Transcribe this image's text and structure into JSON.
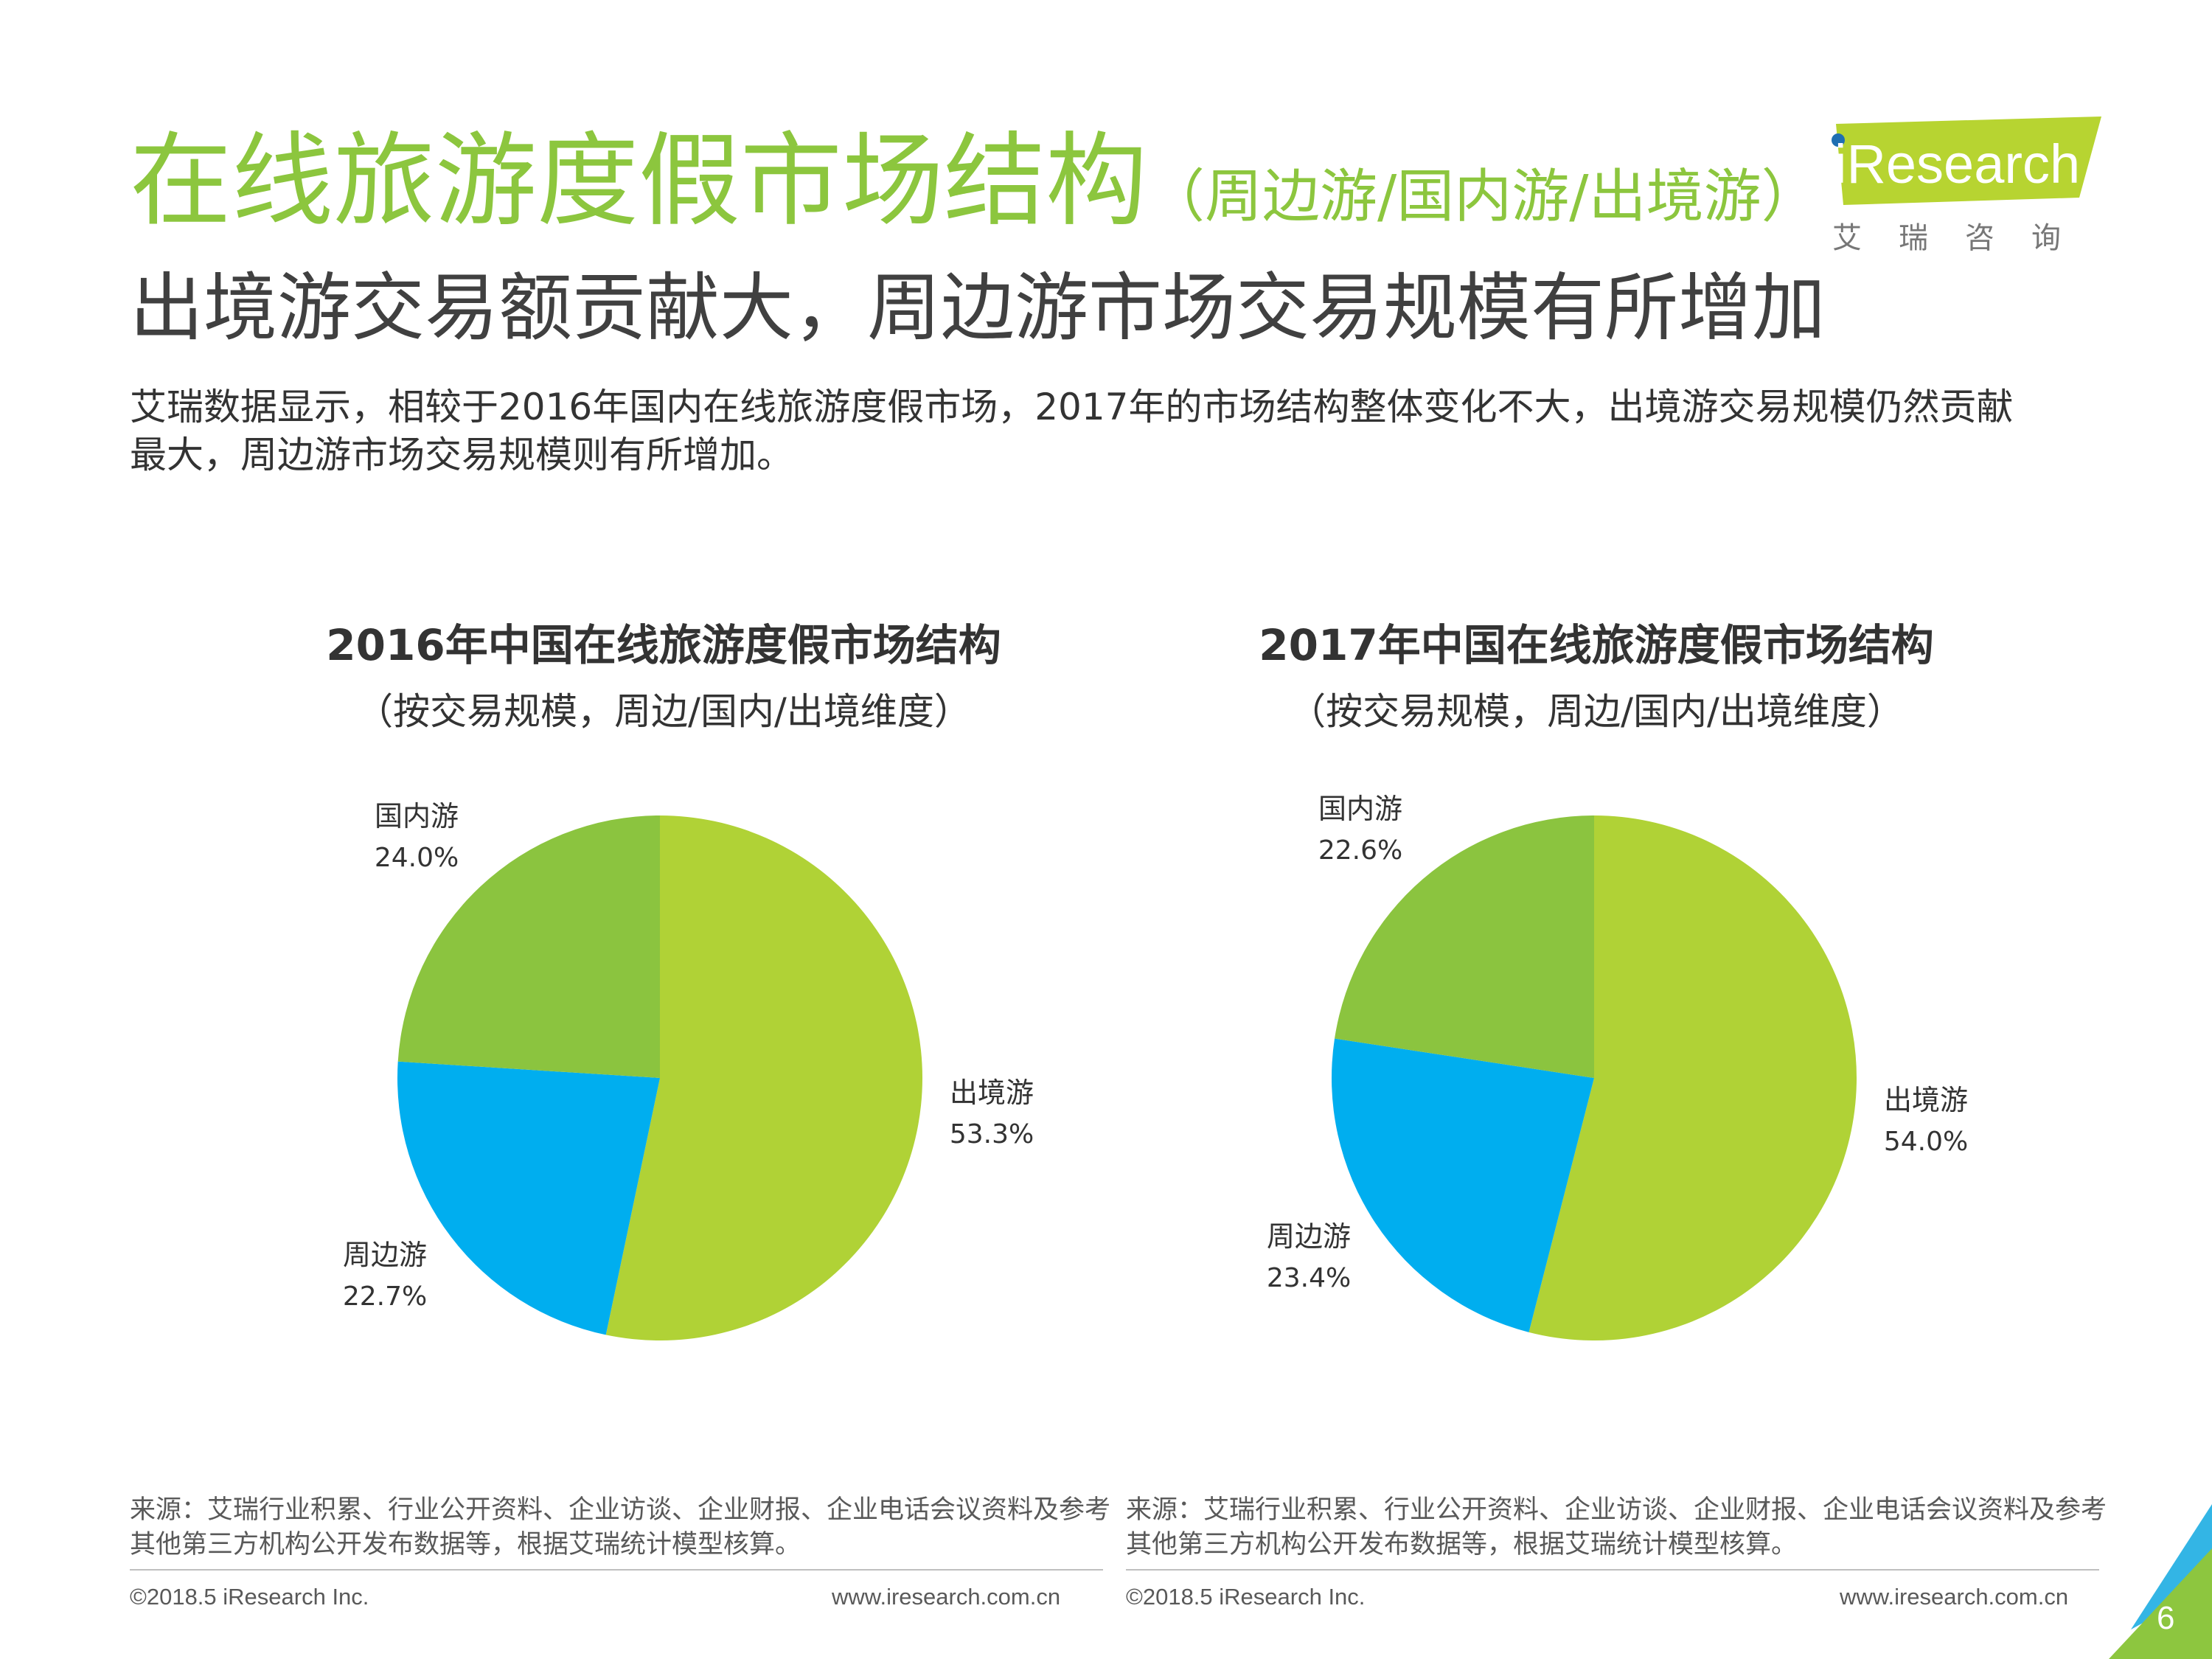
{
  "header": {
    "title": "在线旅游度假市场结构",
    "title_suffix": "（周边游/国内游/出境游）",
    "headline": "出境游交易额贡献大，周边游市场交易规模有所增加",
    "description": "艾瑞数据显示，相较于2016年国内在线旅游度假市场，2017年的市场结构整体变化不大，出境游交易规模仍然贡献最大，周边游市场交易规模则有所增加。"
  },
  "logo": {
    "text": "iResearch",
    "cn": "艾瑞咨询"
  },
  "colors": {
    "outbound": "#b0d236",
    "domestic": "#8bc43f",
    "nearby": "#00aeef",
    "title_green": "#8cc63e"
  },
  "chart_data": [
    {
      "type": "pie",
      "title": "2016年中国在线旅游度假市场结构",
      "subtitle": "（按交易规模，周边/国内/出境维度）",
      "categories": [
        "出境游",
        "周边游",
        "国内游"
      ],
      "values": [
        53.3,
        22.7,
        24.0
      ],
      "value_labels": [
        "53.3%",
        "22.7%",
        "24.0%"
      ],
      "colors": [
        "#b0d236",
        "#00aeef",
        "#8bc43f"
      ]
    },
    {
      "type": "pie",
      "title": "2017年中国在线旅游度假市场结构",
      "subtitle": "（按交易规模，周边/国内/出境维度）",
      "categories": [
        "出境游",
        "周边游",
        "国内游"
      ],
      "values": [
        54.0,
        23.4,
        22.6
      ],
      "value_labels": [
        "54.0%",
        "23.4%",
        "22.6%"
      ],
      "colors": [
        "#b0d236",
        "#00aeef",
        "#8bc43f"
      ]
    }
  ],
  "footer": {
    "source": "来源：艾瑞行业积累、行业公开资料、企业访谈、企业财报、企业电话会议资料及参考其他第三方机构公开发布数据等，根据艾瑞统计模型核算。",
    "copyright": "©2018.5 iResearch Inc.",
    "website": "www.iresearch.com.cn",
    "page": "6"
  }
}
